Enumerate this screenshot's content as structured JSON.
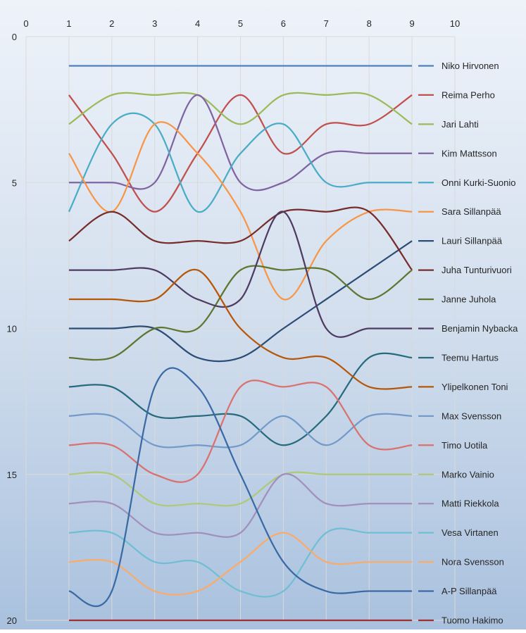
{
  "chart_data": {
    "type": "line",
    "smoothed": true,
    "title": "",
    "xlabel": "",
    "ylabel": "",
    "xlim": [
      0,
      10
    ],
    "ylim": [
      0,
      20
    ],
    "y_inverted": true,
    "x_ticks": [
      0,
      1,
      2,
      3,
      4,
      5,
      6,
      7,
      8,
      9,
      10
    ],
    "y_ticks": [
      0,
      5,
      10,
      15,
      20
    ],
    "grid": true,
    "legend_position": "right",
    "x": [
      1,
      2,
      3,
      4,
      5,
      6,
      7,
      8,
      9
    ],
    "series": [
      {
        "name": "Niko Hirvonen",
        "color": "#4F81BD",
        "values": [
          1,
          1,
          1,
          1,
          1,
          1,
          1,
          1,
          1
        ]
      },
      {
        "name": "Reima Perho",
        "color": "#C0504D",
        "values": [
          2,
          4,
          6,
          4,
          2,
          4,
          3,
          3,
          2
        ]
      },
      {
        "name": "Jari Lahti",
        "color": "#9BBB59",
        "values": [
          3,
          2,
          2,
          2,
          3,
          2,
          2,
          2,
          3
        ]
      },
      {
        "name": "Kim Mattsson",
        "color": "#8064A2",
        "values": [
          5,
          5,
          5,
          2,
          5,
          5,
          4,
          4,
          4
        ]
      },
      {
        "name": "Onni Kurki-Suonio",
        "color": "#4BACC6",
        "values": [
          6,
          3,
          3,
          6,
          4,
          3,
          5,
          5,
          5
        ]
      },
      {
        "name": "Sara Sillanpää",
        "color": "#F79646",
        "values": [
          4,
          6,
          3,
          4,
          6,
          9,
          7,
          6,
          6
        ]
      },
      {
        "name": "Lauri Sillanpää",
        "color": "#2C4D75",
        "values": [
          10,
          10,
          10,
          11,
          11,
          10,
          9,
          8,
          7
        ]
      },
      {
        "name": "Juha Tunturivuori",
        "color": "#772C2A",
        "values": [
          7,
          6,
          7,
          7,
          7,
          6,
          6,
          6,
          8
        ]
      },
      {
        "name": "Janne Juhola",
        "color": "#5F7530",
        "values": [
          11,
          11,
          10,
          10,
          8,
          8,
          8,
          9,
          8
        ]
      },
      {
        "name": "Benjamin Nybacka",
        "color": "#4D3B62",
        "values": [
          8,
          8,
          8,
          9,
          9,
          6,
          10,
          10,
          10
        ]
      },
      {
        "name": "Teemu Hartus",
        "color": "#276A7C",
        "values": [
          12,
          12,
          13,
          13,
          13,
          14,
          13,
          11,
          11
        ]
      },
      {
        "name": "Ylipelkonen Toni",
        "color": "#B65708",
        "values": [
          9,
          9,
          9,
          8,
          10,
          11,
          11,
          12,
          12
        ]
      },
      {
        "name": "Max Svensson",
        "color": "#729ACA",
        "values": [
          13,
          13,
          14,
          14,
          14,
          13,
          14,
          13,
          13
        ]
      },
      {
        "name": "Timo Uotila",
        "color": "#D9716F",
        "values": [
          14,
          14,
          15,
          15,
          12,
          12,
          12,
          14,
          14
        ]
      },
      {
        "name": "Marko Vainio",
        "color": "#AFC97A",
        "values": [
          15,
          15,
          16,
          16,
          16,
          15,
          15,
          15,
          15
        ]
      },
      {
        "name": "Matti Riekkola",
        "color": "#A18FBC",
        "values": [
          16,
          16,
          17,
          17,
          17,
          15,
          16,
          16,
          16
        ]
      },
      {
        "name": "Vesa Virtanen",
        "color": "#6FBFD4",
        "values": [
          17,
          17,
          18,
          18,
          19,
          19,
          17,
          17,
          17
        ]
      },
      {
        "name": "Nora Svensson",
        "color": "#F9AB6B",
        "values": [
          18,
          18,
          19,
          19,
          18,
          17,
          18,
          18,
          18
        ]
      },
      {
        "name": "A-P Sillanpää",
        "color": "#3A6AA6",
        "values": [
          19,
          19,
          12,
          12,
          15,
          18,
          19,
          19,
          19
        ]
      },
      {
        "name": "Tuomo Hakimo",
        "color": "#A0302E",
        "values": [
          20,
          20,
          20,
          20,
          20,
          20,
          20,
          20,
          20
        ]
      }
    ]
  }
}
